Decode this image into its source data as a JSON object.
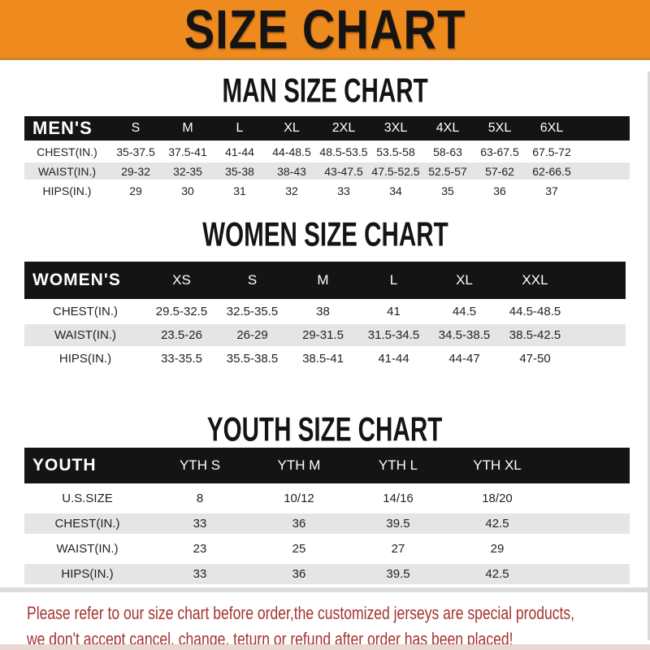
{
  "banner": {
    "title": "SIZE CHART"
  },
  "colors": {
    "banner_bg": "#ee8a1e",
    "band_bg": "#141414",
    "row_alt_bg": "#e5e5e5",
    "footer_red": "#a43430"
  },
  "sections": [
    {
      "id": "men",
      "heading": "MAN SIZE CHART",
      "band_label": "MEN'S",
      "sizes": [
        "S",
        "M",
        "L",
        "XL",
        "2XL",
        "3XL",
        "4XL",
        "5XL",
        "6XL"
      ],
      "rows": [
        {
          "label": "CHEST(IN.)",
          "values": [
            "35-37.5",
            "37.5-41",
            "41-44",
            "44-48.5",
            "48.5-53.5",
            "53.5-58",
            "58-63",
            "63-67.5",
            "67.5-72"
          ]
        },
        {
          "label": "WAIST(IN.)",
          "values": [
            "29-32",
            "32-35",
            "35-38",
            "38-43",
            "43-47.5",
            "47.5-52.5",
            "52.5-57",
            "57-62",
            "62-66.5"
          ]
        },
        {
          "label": "HIPS(IN.)",
          "values": [
            "29",
            "30",
            "31",
            "32",
            "33",
            "34",
            "35",
            "36",
            "37"
          ]
        }
      ]
    },
    {
      "id": "women",
      "heading": "WOMEN SIZE CHART",
      "band_label": "WOMEN'S",
      "sizes": [
        "XS",
        "S",
        "M",
        "L",
        "XL",
        "XXL"
      ],
      "rows": [
        {
          "label": "CHEST(IN.)",
          "values": [
            "29.5-32.5",
            "32.5-35.5",
            "38",
            "41",
            "44.5",
            "44.5-48.5"
          ]
        },
        {
          "label": "WAIST(IN.)",
          "values": [
            "23.5-26",
            "26-29",
            "29-31.5",
            "31.5-34.5",
            "34.5-38.5",
            "38.5-42.5"
          ]
        },
        {
          "label": "HIPS(IN.)",
          "values": [
            "33-35.5",
            "35.5-38.5",
            "38.5-41",
            "41-44",
            "44-47",
            "47-50"
          ]
        }
      ]
    },
    {
      "id": "youth",
      "heading": "YOUTH SIZE CHART",
      "band_label": "YOUTH",
      "sizes": [
        "YTH S",
        "YTH M",
        "YTH L",
        "YTH XL"
      ],
      "rows": [
        {
          "label": "U.S.SIZE",
          "values": [
            "8",
            "10/12",
            "14/16",
            "18/20"
          ]
        },
        {
          "label": "CHEST(IN.)",
          "values": [
            "33",
            "36",
            "39.5",
            "42.5"
          ]
        },
        {
          "label": "WAIST(IN.)",
          "values": [
            "23",
            "25",
            "27",
            "29"
          ]
        },
        {
          "label": "HIPS(IN.)",
          "values": [
            "33",
            "36",
            "39.5",
            "42.5"
          ]
        }
      ]
    }
  ],
  "footer": {
    "line1": "Please refer to our size chart before order,the customized jerseys are special products,",
    "line2": "we don't accept cancel, change, teturn or refund after order has been placed!"
  }
}
